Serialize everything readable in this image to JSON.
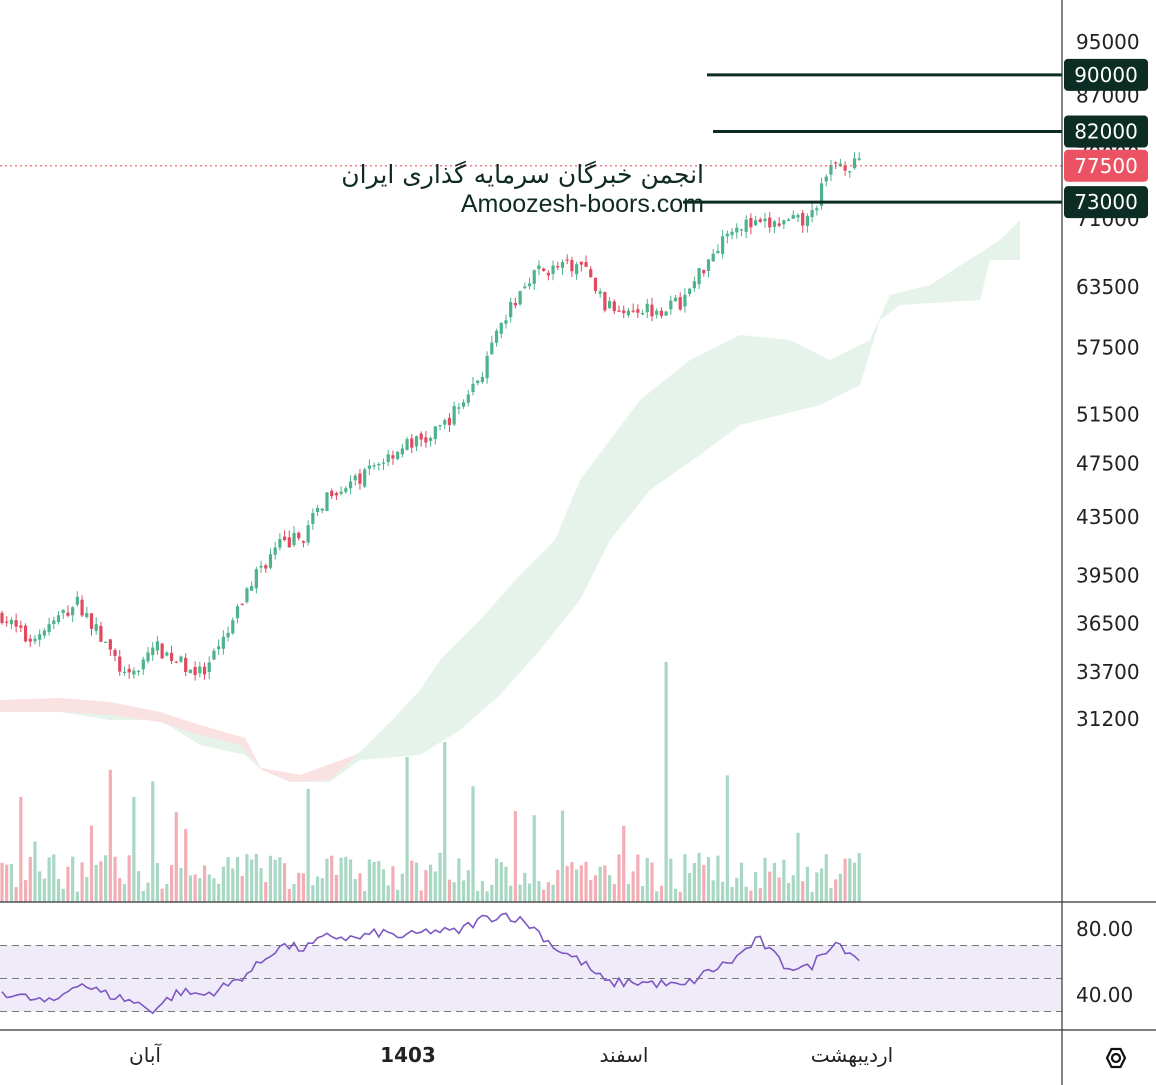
{
  "chart_data": {
    "type": "candlestick",
    "title": "",
    "watermark": [
      "انجمن خبرگان سرمایه گذاری ایران",
      "Amoozesh-boors.com"
    ],
    "y_axis": {
      "ticks": [
        "95000",
        "87000",
        "79000",
        "71000",
        "63500",
        "57500",
        "51500",
        "47500",
        "43500",
        "39500",
        "36500",
        "33700",
        "31200"
      ],
      "scale": "log",
      "range": [
        30500,
        98000
      ]
    },
    "time_axis": {
      "labels": [
        "آبان",
        "1403",
        "اسفند",
        "اردیبهشت"
      ]
    },
    "price_levels": [
      {
        "label": "90000",
        "value": 90000,
        "kind": "resistance"
      },
      {
        "label": "82000",
        "value": 82000,
        "kind": "resistance"
      },
      {
        "label": "77500",
        "value": 77500,
        "kind": "last-price"
      },
      {
        "label": "73000",
        "value": 73000,
        "kind": "support"
      }
    ],
    "price_series": {
      "sampled_close": [
        37000,
        35500,
        36500,
        37800,
        35500,
        33200,
        35200,
        34300,
        33500,
        36000,
        39500,
        41500,
        42200,
        45500,
        46000,
        47700,
        49000,
        49500,
        51800,
        55000,
        60500,
        65000,
        65500,
        65800,
        61300,
        61500,
        61200,
        62000,
        66500,
        70500,
        70200,
        70500,
        70800,
        78000,
        77500
      ]
    },
    "rsi": {
      "ticks": [
        "80.00",
        "40.00"
      ],
      "upper_band": 70,
      "lower_band": 30,
      "sampled": [
        42,
        38,
        35,
        48,
        41,
        37,
        31,
        42,
        40,
        46,
        56,
        70,
        68,
        76,
        74,
        78,
        75,
        79,
        78,
        86,
        89,
        82,
        68,
        60,
        47,
        48,
        47,
        45,
        54,
        61,
        74,
        58,
        56,
        73,
        62
      ]
    },
    "colors": {
      "up": "#4cb38b",
      "down": "#e0495f",
      "level_line": "#0b2d24",
      "last_price": "#eb5264",
      "cloud_bull": "#e6f3ea",
      "cloud_bear": "#fbe2e2",
      "rsi_line": "#7e57c2",
      "rsi_band": "#efebf9"
    }
  }
}
